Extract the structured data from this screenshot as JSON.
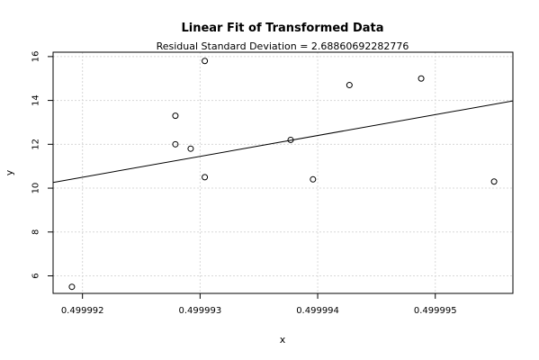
{
  "chart_data": {
    "type": "scatter",
    "title": "Linear Fit of Transformed Data",
    "subtitle": "Residual Standard Deviation =  2.68860692282776",
    "xlabel": "x",
    "ylabel": "y",
    "xlim": [
      0.49999175,
      0.49999566
    ],
    "ylim": [
      5.2,
      16.2
    ],
    "x_ticks": [
      0.499992,
      0.499993,
      0.499994,
      0.499995
    ],
    "x_tick_labels": [
      "0.499992",
      "0.499993",
      "0.499994",
      "0.499995"
    ],
    "y_ticks": [
      6,
      8,
      10,
      12,
      14,
      16
    ],
    "y_tick_labels": [
      "6",
      "8",
      "10",
      "12",
      "14",
      "16"
    ],
    "grid": true,
    "points": [
      {
        "x": 0.49999191,
        "y": 5.5
      },
      {
        "x": 0.49999279,
        "y": 13.3
      },
      {
        "x": 0.49999279,
        "y": 12.0
      },
      {
        "x": 0.49999292,
        "y": 11.8
      },
      {
        "x": 0.49999304,
        "y": 15.8
      },
      {
        "x": 0.49999304,
        "y": 10.5
      },
      {
        "x": 0.49999377,
        "y": 12.2
      },
      {
        "x": 0.49999396,
        "y": 10.4
      },
      {
        "x": 0.49999427,
        "y": 14.7
      },
      {
        "x": 0.49999488,
        "y": 15.0
      },
      {
        "x": 0.4999955,
        "y": 10.3
      }
    ],
    "fit_line": [
      {
        "x": 0.49999175,
        "y": 10.26
      },
      {
        "x": 0.49999566,
        "y": 13.98
      }
    ]
  }
}
